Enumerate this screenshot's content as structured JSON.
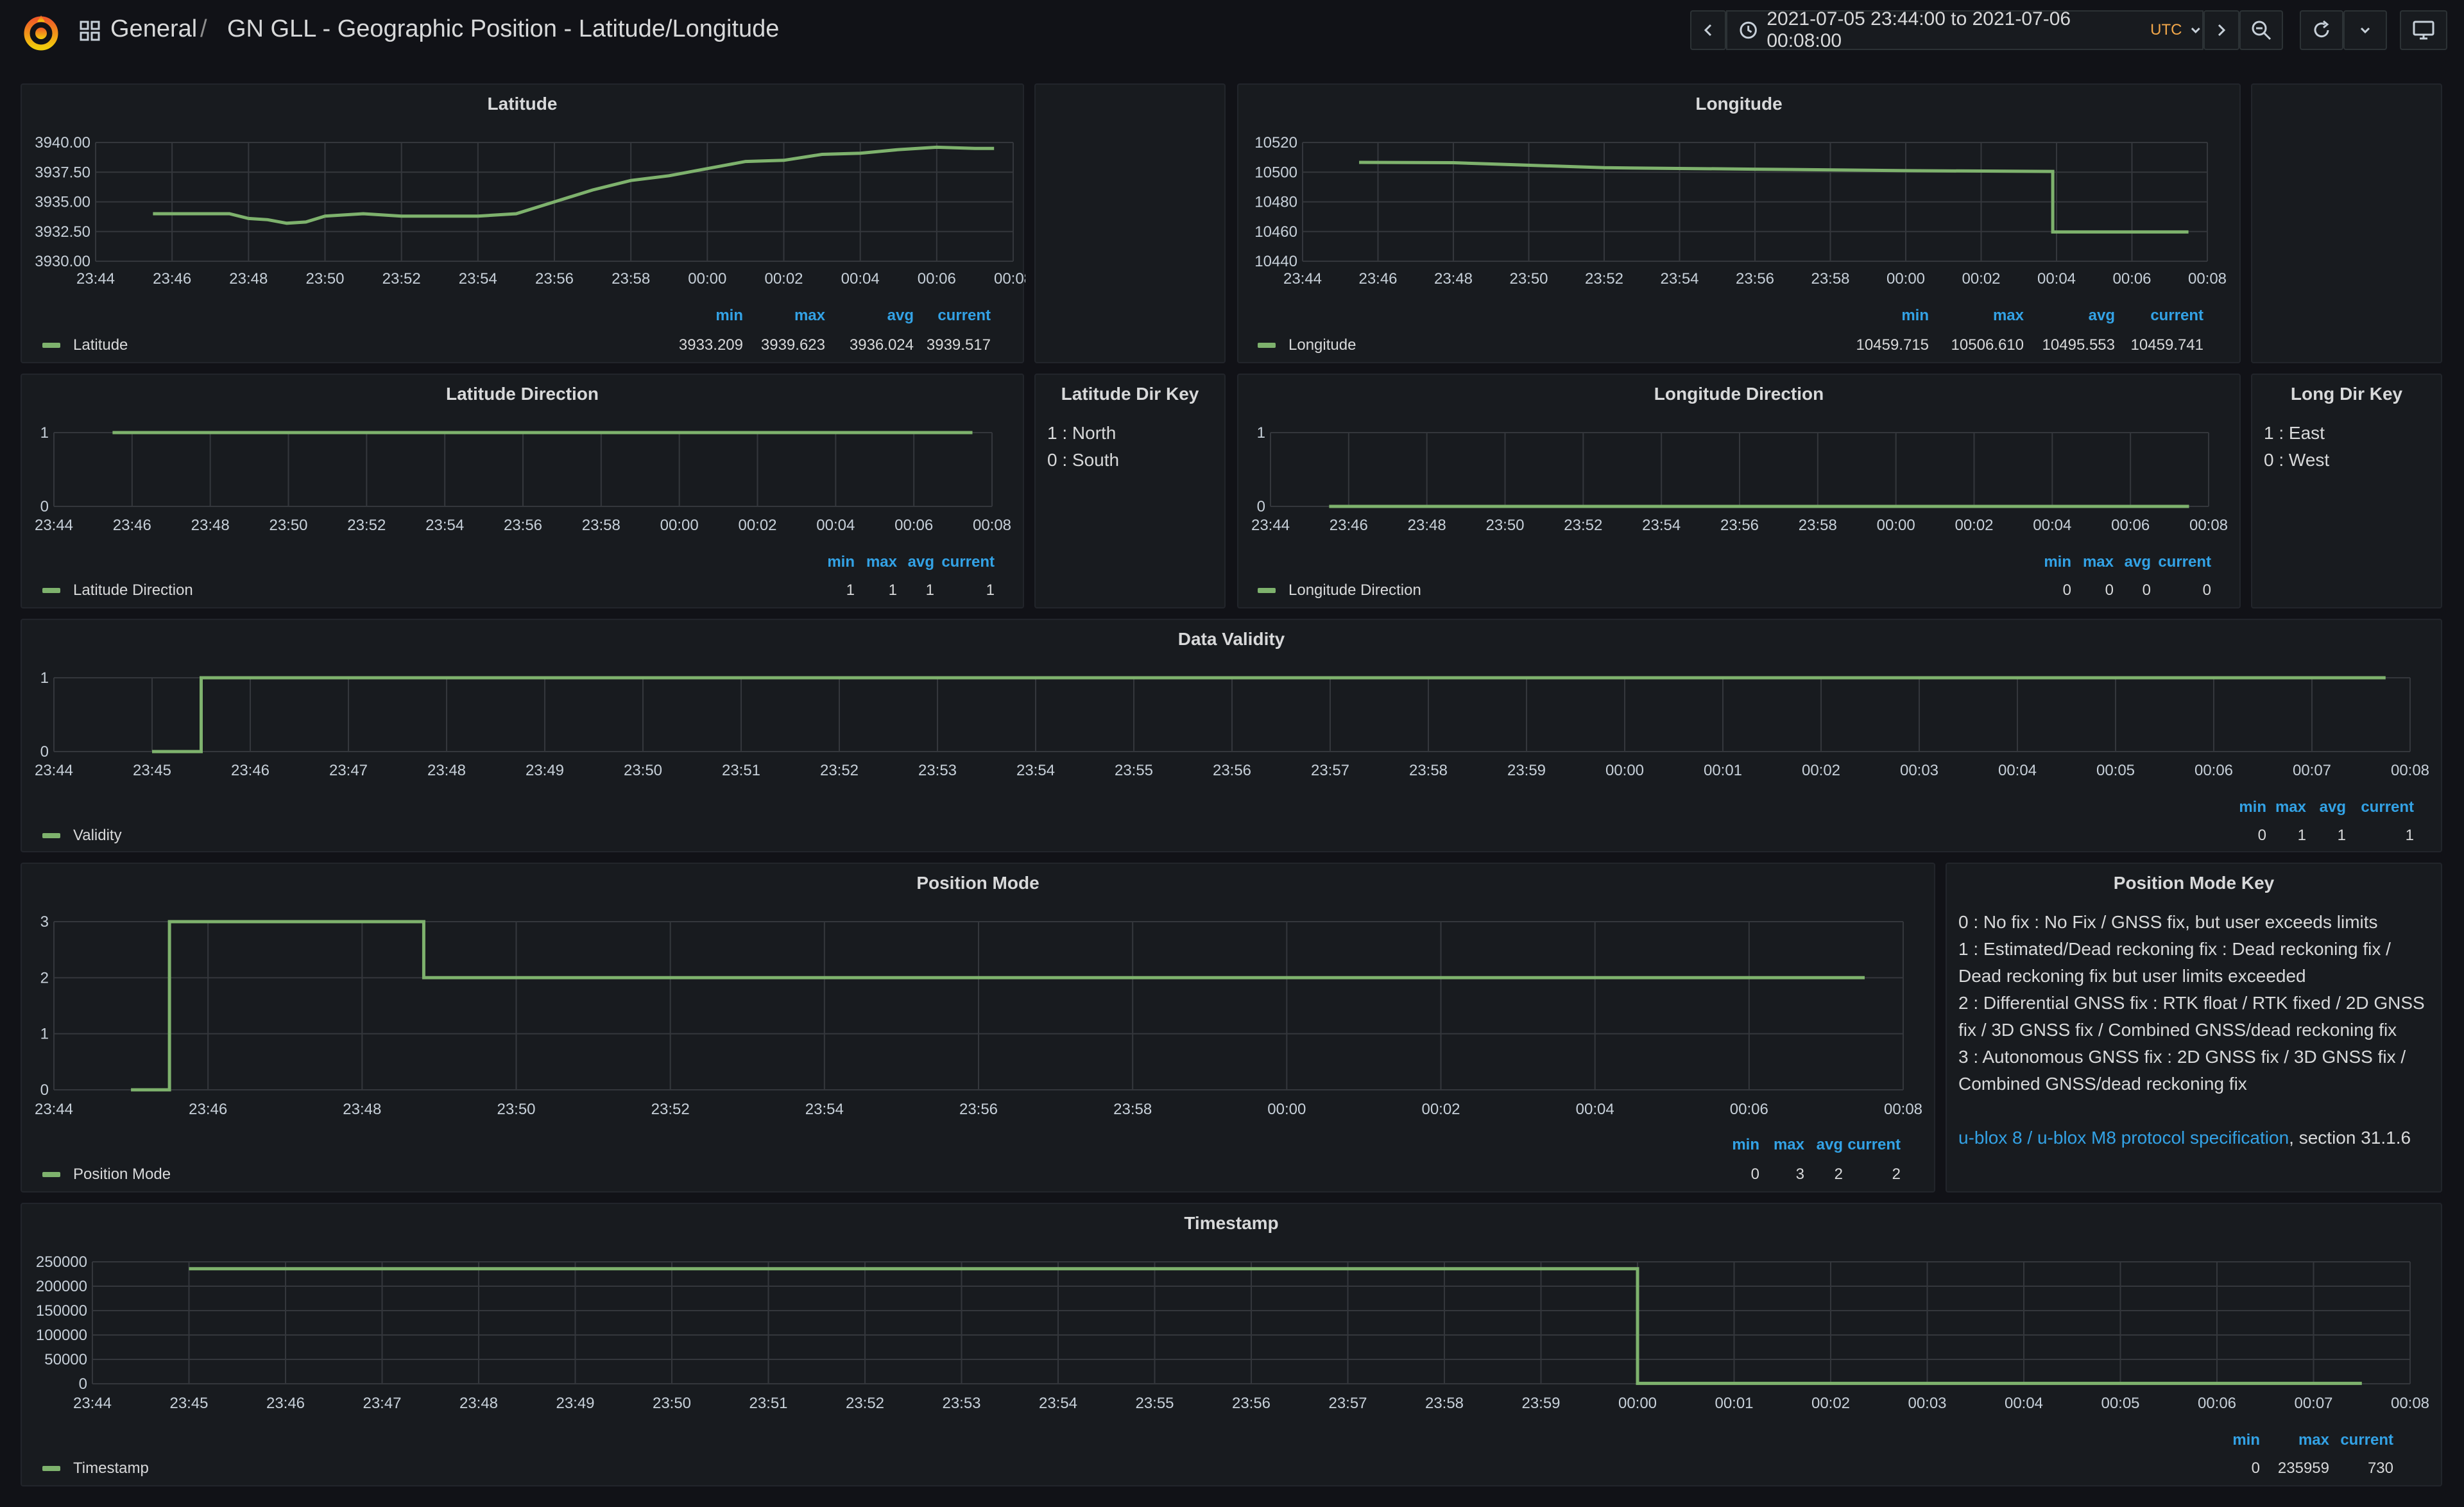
{
  "breadcrumb": {
    "folder": "General",
    "separator": "/",
    "title": "GN GLL - Geographic Position - Latitude/Longitude"
  },
  "time_picker": {
    "range": "2021-07-05 23:44:00 to 2021-07-06 00:08:00",
    "timezone": "UTC"
  },
  "icons": {
    "logo": "grafana-logo-icon",
    "apps": "apps-grid-icon",
    "prev": "chevron-left-icon",
    "clock": "clock-icon",
    "caret": "chevron-down-icon",
    "next": "chevron-right-icon",
    "zoom": "zoom-out-icon",
    "refresh": "refresh-icon",
    "refresh_caret": "chevron-down-icon",
    "tv": "tv-mode-icon"
  },
  "colors": {
    "series": "#7eb26d",
    "legend_header": "#33a2e5",
    "utc": "#f2a74a"
  },
  "stats_headers": {
    "min": "min",
    "max": "max",
    "avg": "avg",
    "current": "current"
  },
  "panels": {
    "latitude": {
      "title": "Latitude",
      "legend": "Latitude",
      "stats": {
        "min": "3933.209",
        "max": "3939.623",
        "avg": "3936.024",
        "current": "3939.517"
      },
      "chart_data": {
        "type": "line",
        "x_ticks": [
          "23:44",
          "23:46",
          "23:48",
          "23:50",
          "23:52",
          "23:54",
          "23:56",
          "23:58",
          "00:00",
          "00:02",
          "00:04",
          "00:06",
          "00:08"
        ],
        "y_ticks": [
          "3940.00",
          "3937.50",
          "3935.00",
          "3932.50",
          "3930.00"
        ],
        "ylim": [
          3930,
          3940
        ],
        "xlim_min": [
          0,
          24
        ],
        "x": [
          1.5,
          2.5,
          3.5,
          4,
          4.5,
          5,
          5.5,
          6,
          7,
          8,
          9,
          10,
          11,
          12,
          13,
          14,
          15,
          16,
          17,
          18,
          19,
          20,
          21,
          22,
          23,
          23.5
        ],
        "y": [
          3934,
          3934,
          3934,
          3933.6,
          3933.5,
          3933.2,
          3933.3,
          3933.8,
          3934,
          3933.8,
          3933.8,
          3933.8,
          3934,
          3935,
          3936,
          3936.8,
          3937.2,
          3937.8,
          3938.4,
          3938.5,
          3939,
          3939.1,
          3939.4,
          3939.6,
          3939.5,
          3939.5
        ]
      }
    },
    "longitude": {
      "title": "Longitude",
      "legend": "Longitude",
      "stats": {
        "min": "10459.715",
        "max": "10506.610",
        "avg": "10495.553",
        "current": "10459.741"
      },
      "chart_data": {
        "type": "line",
        "x_ticks": [
          "23:44",
          "23:46",
          "23:48",
          "23:50",
          "23:52",
          "23:54",
          "23:56",
          "23:58",
          "00:00",
          "00:02",
          "00:04",
          "00:06",
          "00:08"
        ],
        "y_ticks": [
          "10520",
          "10500",
          "10480",
          "10460",
          "10440"
        ],
        "ylim": [
          10440,
          10520
        ],
        "xlim_min": [
          0,
          24
        ],
        "x": [
          1.5,
          4,
          8,
          12,
          16,
          19.9,
          19.9,
          23.5
        ],
        "y": [
          10506.6,
          10506.4,
          10503,
          10502,
          10501,
          10500.5,
          10459.7,
          10459.7
        ]
      }
    },
    "lat_dir": {
      "title": "Latitude Direction",
      "legend": "Latitude Direction",
      "stats": {
        "min": "1",
        "max": "1",
        "avg": "1",
        "current": "1"
      },
      "chart_data": {
        "type": "line",
        "x_ticks": [
          "23:44",
          "23:46",
          "23:48",
          "23:50",
          "23:52",
          "23:54",
          "23:56",
          "23:58",
          "00:00",
          "00:02",
          "00:04",
          "00:06",
          "00:08"
        ],
        "y_ticks": [
          "1",
          "0"
        ],
        "ylim": [
          0,
          1
        ],
        "xlim_min": [
          0,
          24
        ],
        "x": [
          1.5,
          23.5
        ],
        "y": [
          1,
          1
        ]
      }
    },
    "lat_key": {
      "title": "Latitude Dir Key",
      "lines": [
        "1 : North",
        "0 : South"
      ]
    },
    "lon_dir": {
      "title": "Longitude Direction",
      "legend": "Longitude Direction",
      "stats": {
        "min": "0",
        "max": "0",
        "avg": "0",
        "current": "0"
      },
      "chart_data": {
        "type": "line",
        "x_ticks": [
          "23:44",
          "23:46",
          "23:48",
          "23:50",
          "23:52",
          "23:54",
          "23:56",
          "23:58",
          "00:00",
          "00:02",
          "00:04",
          "00:06",
          "00:08"
        ],
        "y_ticks": [
          "1",
          "0"
        ],
        "ylim": [
          0,
          1
        ],
        "xlim_min": [
          0,
          24
        ],
        "x": [
          1.5,
          23.5
        ],
        "y": [
          0,
          0
        ]
      }
    },
    "lon_key": {
      "title": "Long Dir Key",
      "lines": [
        "1 : East",
        "0 : West"
      ]
    },
    "validity": {
      "title": "Data Validity",
      "legend": "Validity",
      "stats": {
        "min": "0",
        "max": "1",
        "avg": "1",
        "current": "1"
      },
      "chart_data": {
        "type": "line",
        "x_ticks": [
          "23:44",
          "23:45",
          "23:46",
          "23:47",
          "23:48",
          "23:49",
          "23:50",
          "23:51",
          "23:52",
          "23:53",
          "23:54",
          "23:55",
          "23:56",
          "23:57",
          "23:58",
          "23:59",
          "00:00",
          "00:01",
          "00:02",
          "00:03",
          "00:04",
          "00:05",
          "00:06",
          "00:07",
          "00:08"
        ],
        "y_ticks": [
          "1",
          "0"
        ],
        "ylim": [
          0,
          1
        ],
        "xlim_min": [
          0,
          24
        ],
        "x": [
          1.0,
          1.5,
          1.5,
          23.75
        ],
        "y": [
          0,
          0,
          1,
          1
        ]
      }
    },
    "position_mode": {
      "title": "Position Mode",
      "legend": "Position Mode",
      "stats": {
        "min": "0",
        "max": "3",
        "avg": "2",
        "current": "2"
      },
      "chart_data": {
        "type": "line",
        "x_ticks": [
          "23:44",
          "23:46",
          "23:48",
          "23:50",
          "23:52",
          "23:54",
          "23:56",
          "23:58",
          "00:00",
          "00:02",
          "00:04",
          "00:06",
          "00:08"
        ],
        "y_ticks": [
          "3",
          "2",
          "1",
          "0"
        ],
        "ylim": [
          0,
          3
        ],
        "xlim_min": [
          0,
          24
        ],
        "x": [
          1.0,
          1.5,
          1.5,
          4.8,
          4.8,
          23.5
        ],
        "y": [
          0,
          0,
          3,
          3,
          2,
          2
        ]
      }
    },
    "position_key": {
      "title": "Position Mode Key",
      "lines": [
        "0 : No fix : No Fix / GNSS fix, but user exceeds limits",
        "1 : Estimated/Dead reckoning fix : Dead reckoning fix /",
        "Dead reckoning fix but user limits exceeded",
        "2 : Differential GNSS fix : RTK float / RTK fixed / 2D GNSS",
        "fix / 3D GNSS fix / Combined GNSS/dead reckoning fix",
        "3 : Autonomous GNSS fix : 2D GNSS fix / 3D GNSS fix /",
        "Combined GNSS/dead reckoning fix"
      ],
      "link": "u-blox 8 / u-blox M8 protocol specification",
      "link_suffix": ", section 31.1.6"
    },
    "timestamp": {
      "title": "Timestamp",
      "legend": "Timestamp",
      "stats": {
        "min": "0",
        "max": "235959",
        "current": "730"
      },
      "chart_data": {
        "type": "line",
        "x_ticks": [
          "23:44",
          "23:45",
          "23:46",
          "23:47",
          "23:48",
          "23:49",
          "23:50",
          "23:51",
          "23:52",
          "23:53",
          "23:54",
          "23:55",
          "23:56",
          "23:57",
          "23:58",
          "23:59",
          "00:00",
          "00:01",
          "00:02",
          "00:03",
          "00:04",
          "00:05",
          "00:06",
          "00:07",
          "00:08"
        ],
        "y_ticks": [
          "250000",
          "200000",
          "150000",
          "100000",
          "50000",
          "0"
        ],
        "ylim": [
          0,
          250000
        ],
        "xlim_min": [
          0,
          24
        ],
        "x": [
          1.0,
          16.0,
          16.0,
          23.5
        ],
        "y": [
          235959,
          235959,
          730,
          730
        ]
      }
    }
  }
}
